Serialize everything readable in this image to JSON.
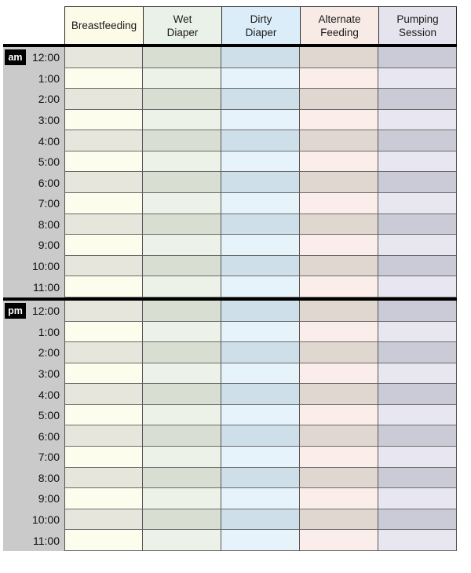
{
  "page": {
    "background": "#ffffff"
  },
  "table": {
    "columns": [
      {
        "id": "breastfeeding",
        "label_lines": [
          "Breastfeeding"
        ],
        "header_bg": "#fbfbe8",
        "row_light": "#fdfdee",
        "row_dark": "#e7e6dc"
      },
      {
        "id": "wet-diaper",
        "label_lines": [
          "Wet",
          "Diaper"
        ],
        "header_bg": "#eaf1e8",
        "row_light": "#edf2e9",
        "row_dark": "#d8ded2"
      },
      {
        "id": "dirty-diaper",
        "label_lines": [
          "Dirty",
          "Diaper"
        ],
        "header_bg": "#dbedf8",
        "row_light": "#e7f3fb",
        "row_dark": "#cfdfe9"
      },
      {
        "id": "alternate-feeding",
        "label_lines": [
          "Alternate",
          "Feeding"
        ],
        "header_bg": "#f8ebe6",
        "row_light": "#fbeeea",
        "row_dark": "#e1d7d1"
      },
      {
        "id": "pumping-session",
        "label_lines": [
          "Pumping",
          "Session"
        ],
        "header_bg": "#e5e4ee",
        "row_light": "#e8e6f1",
        "row_dark": "#cacbd6"
      }
    ],
    "sections": [
      {
        "marker": "am",
        "hours": [
          "12:00",
          "1:00",
          "2:00",
          "3:00",
          "4:00",
          "5:00",
          "6:00",
          "7:00",
          "8:00",
          "9:00",
          "10:00",
          "11:00"
        ]
      },
      {
        "marker": "pm",
        "hours": [
          "12:00",
          "1:00",
          "2:00",
          "3:00",
          "4:00",
          "5:00",
          "6:00",
          "7:00",
          "8:00",
          "9:00",
          "10:00",
          "11:00"
        ]
      }
    ],
    "styles": {
      "gutter_bg": "#cacaca",
      "badge_bg": "#000000",
      "badge_text": "#ffffff",
      "grid_line_h": "#6b6b6b",
      "grid_line_v": "#555555",
      "header_outline": "#2b2b2b",
      "heavy_line": "#000000",
      "text_color": "#1b1b1b"
    }
  }
}
